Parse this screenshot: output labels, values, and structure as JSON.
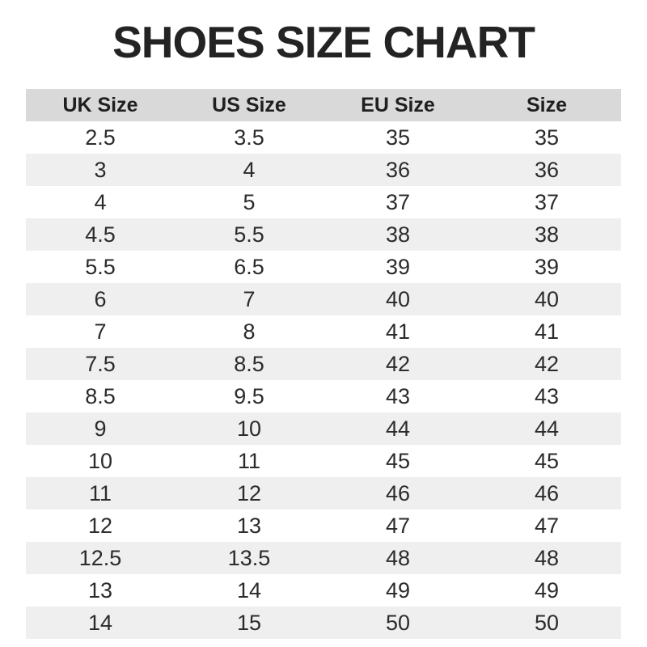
{
  "title": "SHOES SIZE CHART",
  "colors": {
    "page_background": "#ffffff",
    "header_row_background": "#d9d9d9",
    "striped_row_background": "#efefef",
    "title_text": "#232323",
    "cell_text": "#2b2b2b"
  },
  "chart_data": {
    "type": "table",
    "title": "SHOES SIZE CHART",
    "headers": [
      "UK Size",
      "US Size",
      "EU Size",
      "Size"
    ],
    "rows": [
      [
        "2.5",
        "3.5",
        "35",
        "35"
      ],
      [
        "3",
        "4",
        "36",
        "36"
      ],
      [
        "4",
        "5",
        "37",
        "37"
      ],
      [
        "4.5",
        "5.5",
        "38",
        "38"
      ],
      [
        "5.5",
        "6.5",
        "39",
        "39"
      ],
      [
        "6",
        "7",
        "40",
        "40"
      ],
      [
        "7",
        "8",
        "41",
        "41"
      ],
      [
        "7.5",
        "8.5",
        "42",
        "42"
      ],
      [
        "8.5",
        "9.5",
        "43",
        "43"
      ],
      [
        "9",
        "10",
        "44",
        "44"
      ],
      [
        "10",
        "11",
        "45",
        "45"
      ],
      [
        "11",
        "12",
        "46",
        "46"
      ],
      [
        "12",
        "13",
        "47",
        "47"
      ],
      [
        "12.5",
        "13.5",
        "48",
        "48"
      ],
      [
        "13",
        "14",
        "49",
        "49"
      ],
      [
        "14",
        "15",
        "50",
        "50"
      ]
    ],
    "layout": {
      "columns_equal_width": true,
      "row_striping": "alternate rows shaded starting with second data row",
      "header_shaded": true
    }
  }
}
